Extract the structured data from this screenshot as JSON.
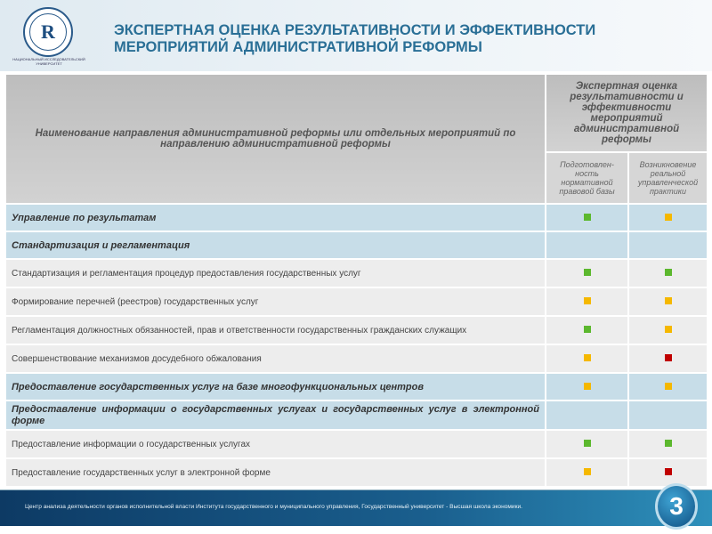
{
  "header": {
    "title_line1": "ЭКСПЕРТНАЯ ОЦЕНКА РЕЗУЛЬТАТИВНОСТИ И ЭФФЕКТИВНОСТИ",
    "title_line2": "МЕРОПРИЯТИЙ АДМИНИСТРАТИВНОЙ РЕФОРМЫ",
    "logo_text": "НАЦИОНАЛЬНЫЙ ИССЛЕДОВАТЕЛЬСКИЙ УНИВЕРСИТЕТ"
  },
  "colors": {
    "green": "#5cb82e",
    "orange": "#f5b800",
    "red": "#c00000"
  },
  "table": {
    "col_main": "Наименование направления административной реформы или отдельных мероприятий по направлению административной реформы",
    "col_group": "Экспертная оценка результативности и эффективности мероприятий административной реформы",
    "col_a": "Подготовлен-ность нормативной правовой базы",
    "col_b": "Возникновение реальной управленческой практики",
    "rows": [
      {
        "type": "sec",
        "label": "Управление по результатам",
        "a": "green",
        "b": "orange"
      },
      {
        "type": "sec",
        "label": "Стандартизация и регламентация",
        "a": "",
        "b": ""
      },
      {
        "type": "item",
        "label": "Стандартизация и регламентация процедур предоставления государственных услуг",
        "a": "green",
        "b": "green"
      },
      {
        "type": "item",
        "label": "Формирование перечней (реестров) государственных услуг",
        "a": "orange",
        "b": "orange"
      },
      {
        "type": "item",
        "label": "Регламентация должностных обязанностей, прав и ответственности государственных гражданских служащих",
        "a": "green",
        "b": "orange"
      },
      {
        "type": "item",
        "label": "Совершенствование механизмов досудебного обжалования",
        "a": "orange",
        "b": "red"
      },
      {
        "type": "sec",
        "label": "Предоставление государственных услуг на базе многофункциональных центров",
        "a": "orange",
        "b": "orange"
      },
      {
        "type": "sec",
        "label": "Предоставление информации о государственных услугах и государственных услуг в электронной форме",
        "a": "",
        "b": ""
      },
      {
        "type": "item",
        "label": "Предоставление информации о государственных услугах",
        "a": "green",
        "b": "green"
      },
      {
        "type": "item",
        "label": "Предоставление государственных услуг в электронной форме",
        "a": "orange",
        "b": "red"
      }
    ]
  },
  "footer": {
    "text": "Центр анализа деятельности органов исполнительной власти Института государственного  и муниципального управления, Государственный университет  - Высшая школа экономики.",
    "page": "3"
  }
}
